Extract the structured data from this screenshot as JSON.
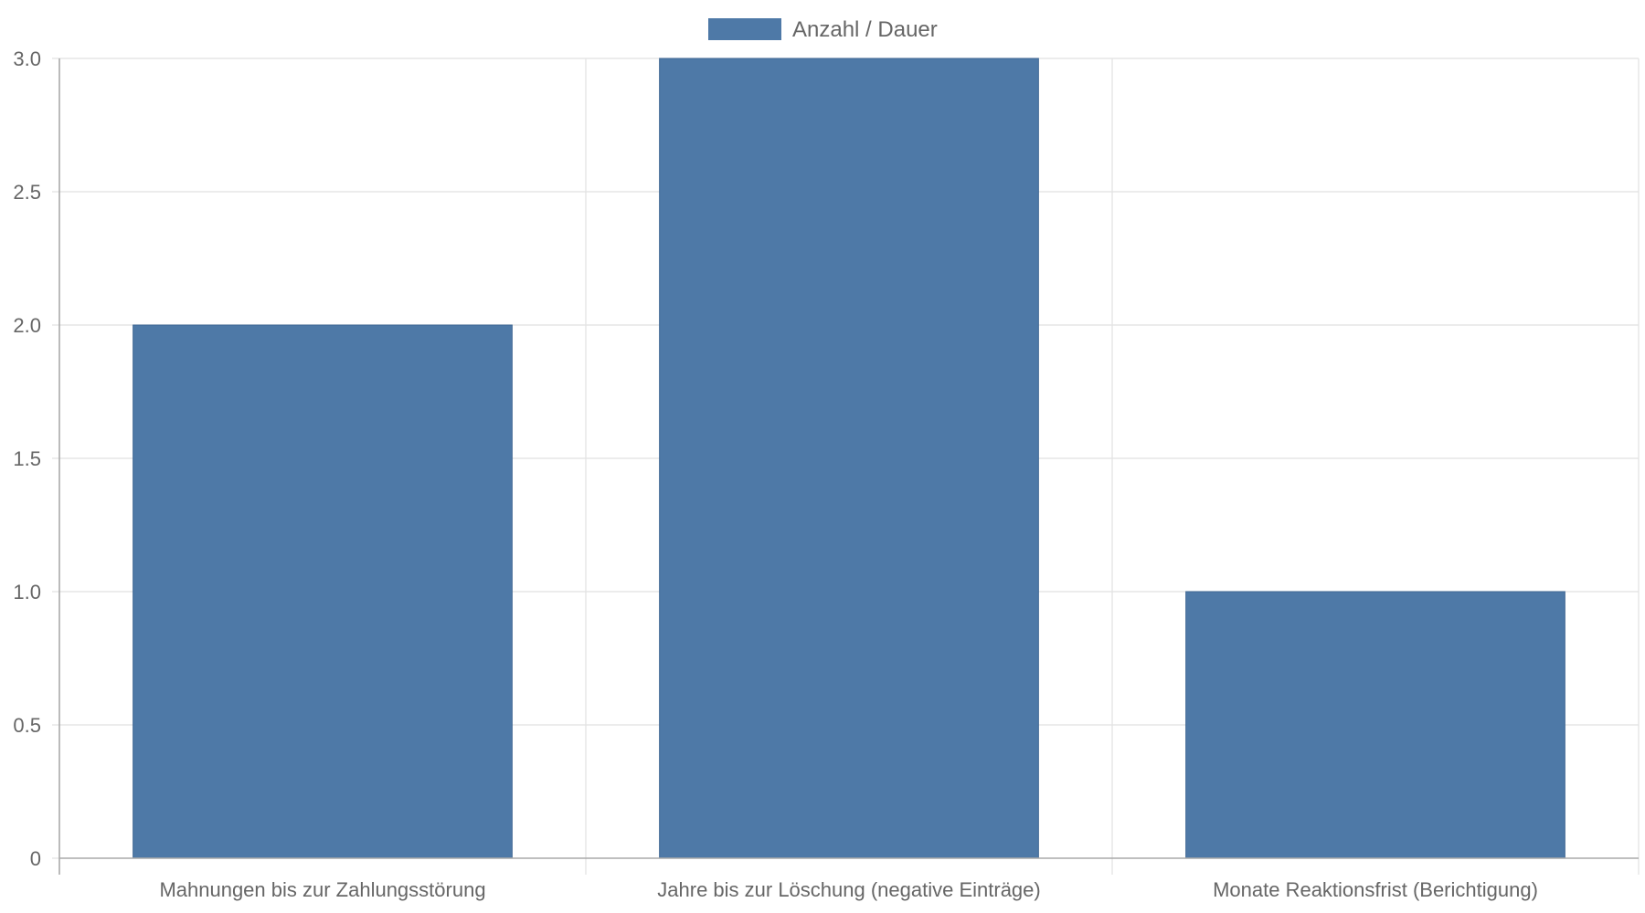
{
  "chart_data": {
    "type": "bar",
    "categories": [
      "Mahnungen bis zur Zahlungsstörung",
      "Jahre bis zur Löschung (negative Einträge)",
      "Monate Reaktionsfrist (Berichtigung)"
    ],
    "series": [
      {
        "name": "Anzahl / Dauer",
        "values": [
          2,
          3,
          1
        ],
        "color": "#4e79a7"
      }
    ],
    "ylim": [
      0,
      3
    ],
    "yticks": [
      "0",
      "0.5",
      "1.0",
      "1.5",
      "2.0",
      "2.5",
      "3.0"
    ],
    "yticks_values": [
      0,
      0.5,
      1.0,
      1.5,
      2.0,
      2.5,
      3.0
    ],
    "grid": true,
    "legend_position": "top-center",
    "title": "",
    "xlabel": "",
    "ylabel": ""
  }
}
